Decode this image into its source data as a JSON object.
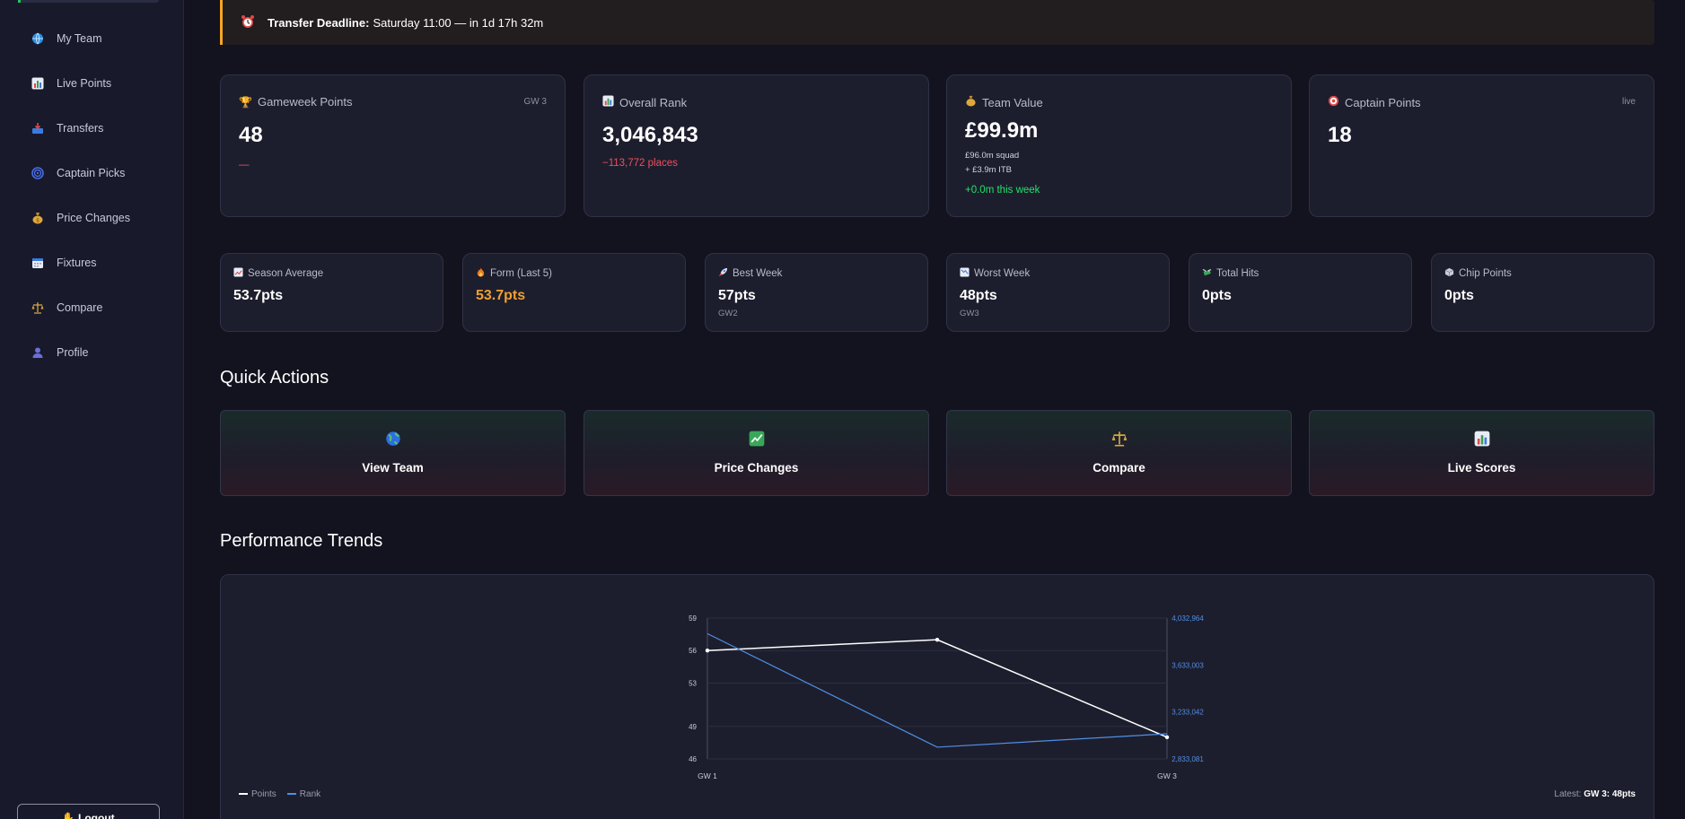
{
  "sidebar": {
    "items": [
      {
        "label": "My Team",
        "icon": "globe-icon"
      },
      {
        "label": "Live Points",
        "icon": "bar-chart-icon"
      },
      {
        "label": "Transfers",
        "icon": "inbox-tray-icon"
      },
      {
        "label": "Captain Picks",
        "icon": "spiral-icon"
      },
      {
        "label": "Price Changes",
        "icon": "money-bag-icon"
      },
      {
        "label": "Fixtures",
        "icon": "calendar-icon"
      },
      {
        "label": "Compare",
        "icon": "scales-icon"
      },
      {
        "label": "Profile",
        "icon": "user-silhouette-icon"
      }
    ],
    "logout_label": "Logout"
  },
  "deadline": {
    "label": "Transfer Deadline:",
    "text": "Saturday 11:00 — in 1d 17h 32m"
  },
  "stats": {
    "gameweek": {
      "title": "Gameweek Points",
      "tag": "GW 3",
      "value": "48",
      "sub": "—"
    },
    "rank": {
      "title": "Overall Rank",
      "value": "3,046,843",
      "sub": "−113,772 places"
    },
    "team_value": {
      "title": "Team Value",
      "value": "£99.9m",
      "squad": "£96.0m squad",
      "itb": "+ £3.9m ITB",
      "change": "+0.0m this week"
    },
    "captain": {
      "title": "Captain Points",
      "tag": "live",
      "value": "18"
    }
  },
  "mini_stats": {
    "season_avg": {
      "title": "Season Average",
      "value": "53.7pts"
    },
    "form": {
      "title": "Form (Last 5)",
      "value": "53.7pts"
    },
    "best": {
      "title": "Best Week",
      "value": "57pts",
      "sub": "GW2"
    },
    "worst": {
      "title": "Worst Week",
      "value": "48pts",
      "sub": "GW3"
    },
    "hits": {
      "title": "Total Hits",
      "value": "0pts"
    },
    "chips": {
      "title": "Chip Points",
      "value": "0pts"
    }
  },
  "quick_actions": {
    "title": "Quick Actions",
    "items": [
      {
        "label": "View Team",
        "icon": "globe-icon"
      },
      {
        "label": "Price Changes",
        "icon": "chart-up-icon"
      },
      {
        "label": "Compare",
        "icon": "scales-icon"
      },
      {
        "label": "Live Scores",
        "icon": "bar-chart-icon"
      }
    ]
  },
  "performance": {
    "title": "Performance Trends",
    "legend_points": "Points",
    "legend_rank": "Rank",
    "latest_label": "Latest:",
    "latest_value": "GW 3: 48pts"
  },
  "colors": {
    "accent_green": "#22c55e",
    "warning_orange": "#f5a623",
    "negative_red": "#ef4f5f",
    "positive_green": "#22e06b",
    "form_orange": "#f0a030",
    "rank_blue": "#4f8fe6"
  },
  "chart_data": {
    "type": "line",
    "x": [
      "GW 1",
      "GW 2",
      "GW 3"
    ],
    "x_tick_labels": [
      "GW 1",
      "",
      "GW 3"
    ],
    "series": [
      {
        "name": "Points",
        "axis": "left",
        "values": [
          56,
          57,
          48
        ]
      },
      {
        "name": "Rank",
        "axis": "right",
        "values": [
          3900000,
          2933072,
          3046843
        ]
      }
    ],
    "y_left": {
      "ticks": [
        "59",
        "56",
        "53",
        "49",
        "46"
      ],
      "tick_values": [
        59,
        56,
        53,
        49,
        46
      ],
      "range": [
        46,
        59
      ]
    },
    "y_right": {
      "ticks": [
        "4,032,964",
        "3,633,003",
        "3,233,042",
        "2,833,081"
      ],
      "tick_values": [
        4032964,
        3633003,
        3233042,
        2833081
      ],
      "range": [
        2833081,
        4032964
      ]
    },
    "grid": true,
    "legend": "bottom-left"
  }
}
